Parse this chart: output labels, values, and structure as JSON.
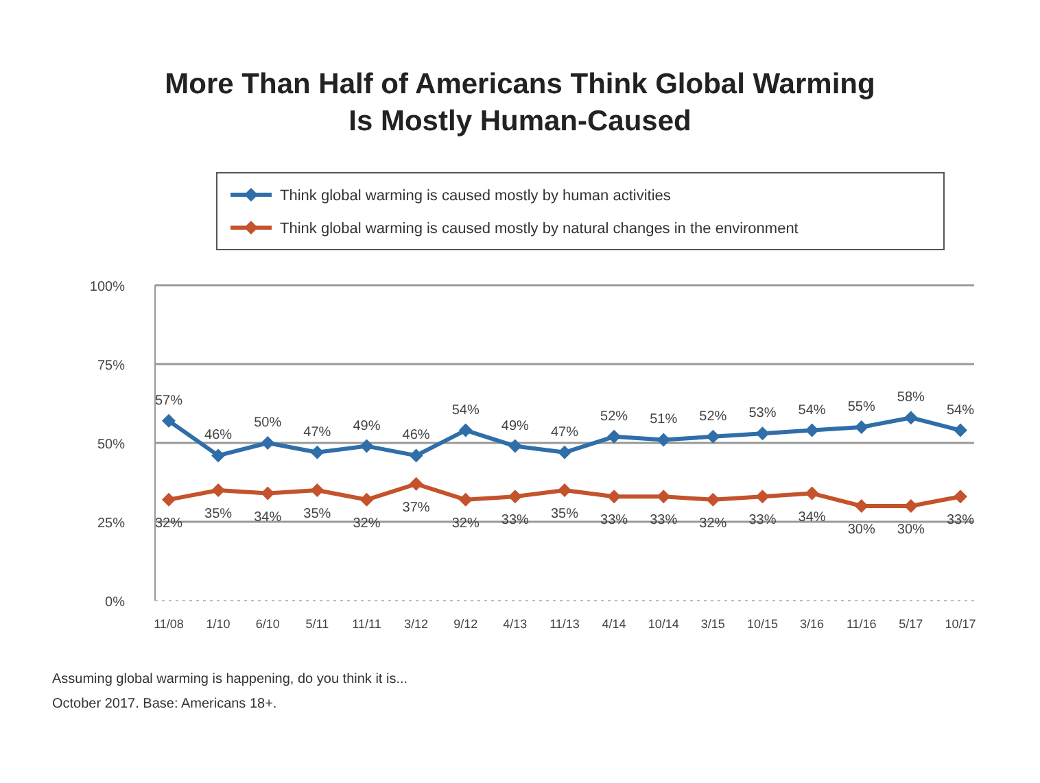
{
  "chart_data": {
    "type": "line",
    "title": "More Than Half of Americans Think Global Warming Is Mostly Human-Caused",
    "categories": [
      "11/08",
      "1/10",
      "6/10",
      "5/11",
      "11/11",
      "3/12",
      "9/12",
      "4/13",
      "11/13",
      "4/14",
      "10/14",
      "3/15",
      "10/15",
      "3/16",
      "11/16",
      "5/17",
      "10/17"
    ],
    "series": [
      {
        "name": "Think global warming is caused mostly by human activities",
        "color": "#2f6ea8",
        "values": [
          57,
          46,
          50,
          47,
          49,
          46,
          54,
          49,
          47,
          52,
          51,
          52,
          53,
          54,
          55,
          58,
          54
        ],
        "value_labels": [
          "57%",
          "46%",
          "50%",
          "47%",
          "49%",
          "46%",
          "54%",
          "49%",
          "47%",
          "52%",
          "51%",
          "52%",
          "53%",
          "54%",
          "55%",
          "58%",
          "54%"
        ]
      },
      {
        "name": "Think global warming is caused mostly by natural changes in the environment",
        "color": "#c4522b",
        "values": [
          32,
          35,
          34,
          35,
          32,
          37,
          32,
          33,
          35,
          33,
          33,
          32,
          33,
          34,
          30,
          30,
          33
        ],
        "value_labels": [
          "32%",
          "35%",
          "34%",
          "35%",
          "32%",
          "37%",
          "32%",
          "33%",
          "35%",
          "33%",
          "33%",
          "32%",
          "33%",
          "34%",
          "30%",
          "30%",
          "33%"
        ]
      }
    ],
    "ylim": [
      0,
      100
    ],
    "yticks": [
      {
        "value": 0,
        "label": "0%"
      },
      {
        "value": 25,
        "label": "25%"
      },
      {
        "value": 50,
        "label": "50%"
      },
      {
        "value": 75,
        "label": "75%"
      },
      {
        "value": 100,
        "label": "100%"
      }
    ],
    "grid": "y",
    "legend": "top",
    "marker": "diamond",
    "line_style": "solid",
    "annotations": [
      "Assuming global warming is happening, do you think it is...",
      "October 2017. Base: Americans 18+."
    ]
  }
}
